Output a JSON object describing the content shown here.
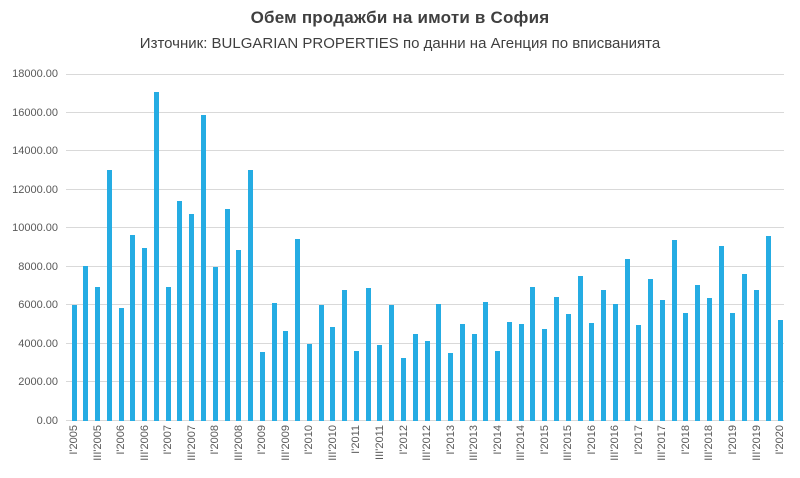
{
  "chart_data": {
    "type": "bar",
    "title": "Обем продажби на имоти в София",
    "subtitle": "Източник: BULGARIAN PROPERTIES по данни на Агенция по вписванията",
    "categories": [
      "I'2005",
      "II'2005",
      "III'2005",
      "IV'2005",
      "I'2006",
      "II'2006",
      "III'2006",
      "IV'2006",
      "I'2007",
      "II'2007",
      "III'2007",
      "IV'2007",
      "I'2008",
      "II'2008",
      "III'2008",
      "IV'2008",
      "I'2009",
      "II'2009",
      "III'2009",
      "IV'2009",
      "I'2010",
      "II'2010",
      "III'2010",
      "IV'2010",
      "I'2011",
      "II'2011",
      "III'2011",
      "IV'2011",
      "I'2012",
      "II'2012",
      "III'2012",
      "IV'2012",
      "I'2013",
      "II'2013",
      "III'2013",
      "IV'2013",
      "I'2014",
      "II'2014",
      "III'2014",
      "IV'2014",
      "I'2015",
      "II'2015",
      "III'2015",
      "IV'2015",
      "I'2016",
      "II'2016",
      "III'2016",
      "IV'2016",
      "I'2017",
      "II'2017",
      "III'2017",
      "IV'2017",
      "I'2018",
      "II'2018",
      "III'2018",
      "IV'2018",
      "I'2019",
      "II'2019",
      "III'2019",
      "IV'2019",
      "I'2020"
    ],
    "values": [
      6000,
      8050,
      6950,
      13000,
      5850,
      9630,
      9000,
      17050,
      6950,
      11400,
      10750,
      15850,
      8000,
      11000,
      8870,
      13000,
      3600,
      6130,
      4670,
      9440,
      3980,
      6040,
      4880,
      6800,
      3620,
      6900,
      3950,
      6020,
      3280,
      4530,
      4160,
      6050,
      3540,
      5050,
      4500,
      6180,
      3650,
      5160,
      5020,
      6930,
      4780,
      6460,
      5540,
      7530,
      5100,
      6800,
      6080,
      8400,
      4970,
      7380,
      6270,
      9390,
      5610,
      7080,
      6360,
      9100,
      5610,
      7640,
      6820,
      9590,
      5250
    ],
    "x_tick_every": 2,
    "x_tick_labels": [
      "I'2005",
      "III'2005",
      "I'2006",
      "III'2006",
      "I'2007",
      "III'2007",
      "I'2008",
      "III'2008",
      "I'2009",
      "III'2009",
      "I'2010",
      "III'2010",
      "I'2011",
      "III'2011",
      "I'2012",
      "III'2012",
      "I'2013",
      "III'2013",
      "I'2014",
      "III'2014",
      "I'2015",
      "III'2015",
      "I'2016",
      "III'2016",
      "I'2017",
      "III'2017",
      "I'2018",
      "III'2018",
      "I'2019",
      "III'2019",
      "I'2020"
    ],
    "y_ticks": [
      "0.00",
      "2000.00",
      "4000.00",
      "6000.00",
      "8000.00",
      "10000.00",
      "12000.00",
      "14000.00",
      "16000.00",
      "18000.00"
    ],
    "ylim": [
      0,
      18000
    ],
    "y_step": 2000,
    "xlabel": "",
    "ylabel": "",
    "grid": "horizontal",
    "legend": "none",
    "bar_color": "#25ACE3",
    "grid_color": "#D9D9D9",
    "tick_label_color": "#595959",
    "title_color": "#3F3F3F"
  }
}
